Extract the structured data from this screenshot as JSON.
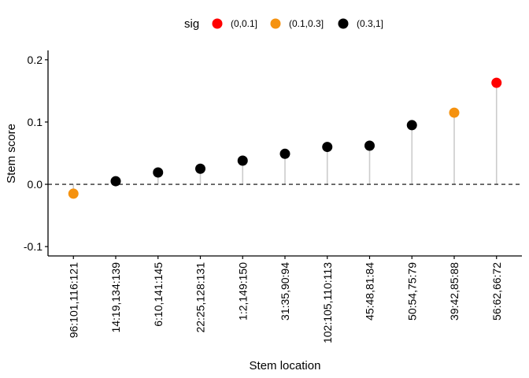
{
  "chart_data": {
    "type": "lollipop",
    "title": "",
    "xlabel": "Stem location",
    "ylabel": "Stem score",
    "ylim": [
      -0.115,
      0.215
    ],
    "yticks": [
      -0.1,
      0.0,
      0.1,
      0.2
    ],
    "ytick_labels": [
      "-0.1",
      "0.0",
      "0.1",
      "0.2"
    ],
    "reference_line": {
      "y": 0.0,
      "style": "dashed"
    },
    "grid": false,
    "legend": {
      "position": "top",
      "title": "sig",
      "entries": [
        {
          "label": "(0,0.1]",
          "color": "#ff0000"
        },
        {
          "label": "(0.1,0.3]",
          "color": "#f5920f"
        },
        {
          "label": "(0.3,1]",
          "color": "#000000"
        }
      ]
    },
    "stem_color": "#cccccc",
    "points": [
      {
        "x": "96:101,116:121",
        "y": -0.015,
        "sig": "(0.1,0.3]"
      },
      {
        "x": "14:19,134:139",
        "y": 0.005,
        "sig": "(0.3,1]"
      },
      {
        "x": "6:10,141:145",
        "y": 0.019,
        "sig": "(0.3,1]"
      },
      {
        "x": "22:25,128:131",
        "y": 0.025,
        "sig": "(0.3,1]"
      },
      {
        "x": "1:2,149:150",
        "y": 0.038,
        "sig": "(0.3,1]"
      },
      {
        "x": "31:35,90:94",
        "y": 0.049,
        "sig": "(0.3,1]"
      },
      {
        "x": "102:105,110:113",
        "y": 0.06,
        "sig": "(0.3,1]"
      },
      {
        "x": "45:48,81:84",
        "y": 0.062,
        "sig": "(0.3,1]"
      },
      {
        "x": "50:54,75:79",
        "y": 0.095,
        "sig": "(0.3,1]"
      },
      {
        "x": "39:42,85:88",
        "y": 0.115,
        "sig": "(0.1,0.3]"
      },
      {
        "x": "56:62,66:72",
        "y": 0.163,
        "sig": "(0,0.1]"
      }
    ]
  }
}
